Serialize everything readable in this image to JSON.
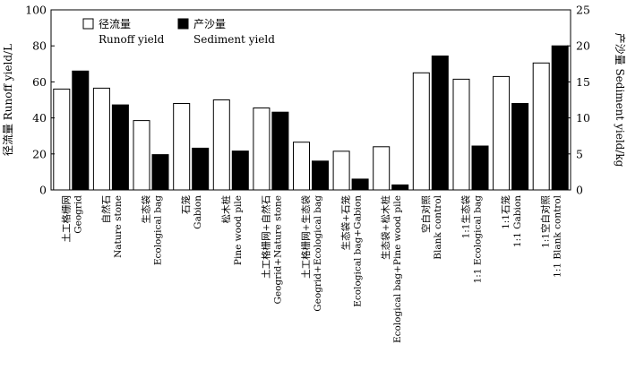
{
  "chart_data": {
    "type": "bar",
    "categories": [
      {
        "zh": "土工格栅网",
        "en": "Geogrid"
      },
      {
        "zh": "自然石",
        "en": "Nature stone"
      },
      {
        "zh": "生态袋",
        "en": "Ecological bag"
      },
      {
        "zh": "石笼",
        "en": "Gabion"
      },
      {
        "zh": "松木桩",
        "en": "Pine wood pile"
      },
      {
        "zh": "土工格栅网+自然石",
        "en": "Geogrid+Nature stone"
      },
      {
        "zh": "土工格栅网+生态袋",
        "en": "Geogrid+Ecological bag"
      },
      {
        "zh": "生态袋+石笼",
        "en": "Ecological bag+Gabion"
      },
      {
        "zh": "生态袋+松木桩",
        "en": "Ecological bag+Pine wood pile"
      },
      {
        "zh": "空白对照",
        "en": "Blank control"
      },
      {
        "zh": "1:1生态袋",
        "en": "1:1 Ecological bag"
      },
      {
        "zh": "1:1石笼",
        "en": "1:1 Gabion"
      },
      {
        "zh": "1:1空白对照",
        "en": "1:1 Blank control"
      }
    ],
    "series": [
      {
        "name": "径流量",
        "name_en": "Runoff yield",
        "axis": "left",
        "color": "#ffffff",
        "values": [
          56,
          56.5,
          38.5,
          48,
          50,
          45.5,
          26.5,
          21.5,
          24,
          65,
          61.5,
          63,
          70.5
        ]
      },
      {
        "name": "产沙量",
        "name_en": "Sediment yield",
        "axis": "right",
        "color": "#000000",
        "values": [
          16.5,
          11.8,
          4.9,
          5.8,
          5.4,
          10.8,
          4,
          1.5,
          0.7,
          18.6,
          6.1,
          12,
          20
        ]
      }
    ],
    "y_left": {
      "label": "径流量 Runoff yield/L",
      "ylim": [
        0,
        100
      ],
      "ticks": [
        "0",
        "20",
        "40",
        "60",
        "80",
        "100"
      ]
    },
    "y_right": {
      "label": "产沙量 Sediment yield/kg",
      "ylim": [
        0,
        25
      ],
      "ticks": [
        "0",
        "5",
        "10",
        "15",
        "20",
        "25"
      ]
    },
    "legend_position": "top-left",
    "grid": false
  }
}
